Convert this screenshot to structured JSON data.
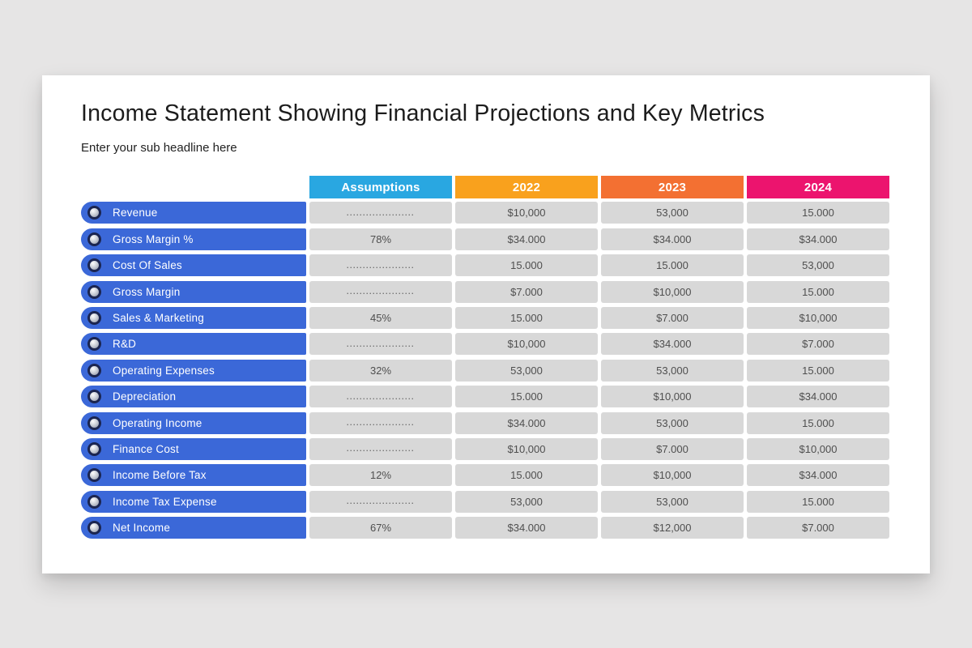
{
  "canvas": {
    "background": "#e6e5e5",
    "slide_background": "#ffffff"
  },
  "slide": {
    "title": "Income Statement Showing Financial Projections and Key Metrics",
    "subtitle": "Enter your sub headline here"
  },
  "table": {
    "headers": [
      {
        "label": "Assumptions",
        "color": "#29a7e1"
      },
      {
        "label": "2022",
        "color": "#f9a11d"
      },
      {
        "label": "2023",
        "color": "#f37032"
      },
      {
        "label": "2024",
        "color": "#ec146e"
      }
    ],
    "row_pill_color": "#3b68d8",
    "bullet_ring_color": "#1b2550",
    "cell_background": "#d8d8d8",
    "dots_placeholder": ".....................",
    "rows": [
      {
        "label": "Revenue",
        "values": [
          ".....................",
          "$10,000",
          "53,000",
          "15.000"
        ]
      },
      {
        "label": "Gross Margin %",
        "values": [
          "78%",
          "$34.000",
          "$34.000",
          "$34.000"
        ]
      },
      {
        "label": "Cost Of Sales",
        "values": [
          ".....................",
          "15.000",
          "15.000",
          "53,000"
        ]
      },
      {
        "label": "Gross Margin",
        "values": [
          ".....................",
          "$7.000",
          "$10,000",
          "15.000"
        ]
      },
      {
        "label": "Sales & Marketing",
        "values": [
          "45%",
          "15.000",
          "$7.000",
          "$10,000"
        ]
      },
      {
        "label": "R&D",
        "values": [
          ".....................",
          "$10,000",
          "$34.000",
          "$7.000"
        ]
      },
      {
        "label": "Operating Expenses",
        "values": [
          "32%",
          "53,000",
          "53,000",
          "15.000"
        ]
      },
      {
        "label": "Depreciation",
        "values": [
          ".....................",
          "15.000",
          "$10,000",
          "$34.000"
        ]
      },
      {
        "label": "Operating Income",
        "values": [
          ".....................",
          "$34.000",
          "53,000",
          "15.000"
        ]
      },
      {
        "label": "Finance Cost",
        "values": [
          ".....................",
          "$10,000",
          "$7.000",
          "$10,000"
        ]
      },
      {
        "label": "Income Before Tax",
        "values": [
          "12%",
          "15.000",
          "$10,000",
          "$34.000"
        ]
      },
      {
        "label": "Income Tax Expense",
        "values": [
          ".....................",
          "53,000",
          "53,000",
          "15.000"
        ]
      },
      {
        "label": "Net Income",
        "values": [
          "67%",
          "$34.000",
          "$12,000",
          "$7.000"
        ]
      }
    ]
  }
}
